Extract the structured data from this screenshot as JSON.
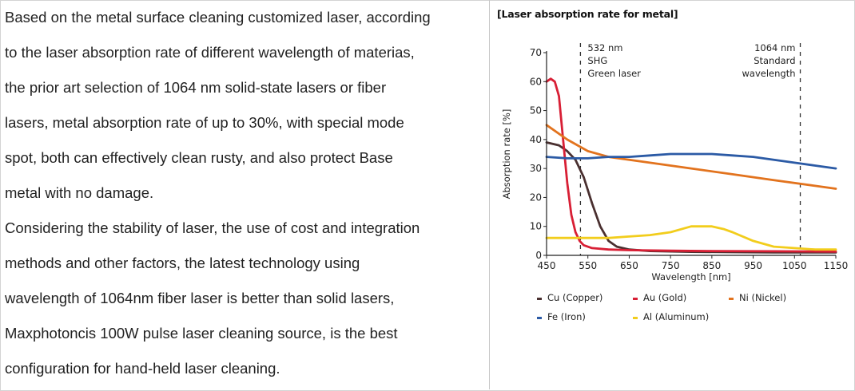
{
  "article": {
    "lines": [
      "Based on the metal surface cleaning customized laser, according",
      "to the laser absorption rate of different wavelength of materias,",
      "the prior art selection of 1064 nm solid-state lasers or fiber",
      "lasers, metal absorption rate of up to 30%, with special mode",
      "spot, both can effectively clean rusty, and also protect Base",
      "metal with no damage.",
      "Considering the stability of laser, the use of cost and integration",
      "methods and other factors, the latest technology using",
      "wavelength of 1064nm fiber laser is better than solid lasers,",
      "Maxphotoncis 100W pulse laser cleaning source, is the best",
      "configuration for hand-held laser cleaning."
    ]
  },
  "chart_data": {
    "type": "line",
    "title": "[Laser absorption rate for metal]",
    "xlabel": "Wavelength [nm]",
    "ylabel": "Absorption rate [%]",
    "xlim": [
      450,
      1150
    ],
    "ylim": [
      0,
      70
    ],
    "xticks": [
      450,
      550,
      650,
      750,
      850,
      950,
      1050,
      1150
    ],
    "yticks": [
      0,
      10,
      20,
      30,
      40,
      50,
      60,
      70
    ],
    "grid": false,
    "legend_position": "bottom",
    "annotations": [
      {
        "x": 532,
        "lines": [
          "532 nm",
          "SHG",
          "Green laser"
        ],
        "align": "left"
      },
      {
        "x": 1064,
        "lines": [
          "1064 nm",
          "Standard",
          "wavelength"
        ],
        "align": "right"
      }
    ],
    "series": [
      {
        "name": "Cu (Copper)",
        "color": "#4a3030",
        "x": [
          450,
          480,
          500,
          520,
          540,
          560,
          580,
          600,
          620,
          650,
          700,
          800,
          900,
          1000,
          1100,
          1150
        ],
        "y": [
          39,
          38,
          36,
          33,
          27,
          18,
          10,
          5,
          3,
          2,
          1.5,
          1.2,
          1.1,
          1,
          1,
          1
        ]
      },
      {
        "name": "Au (Gold)",
        "color": "#d81f35",
        "x": [
          450,
          460,
          470,
          480,
          490,
          500,
          510,
          520,
          530,
          540,
          560,
          600,
          650,
          750,
          850,
          1000,
          1150
        ],
        "y": [
          60,
          61,
          60,
          55,
          40,
          25,
          14,
          8,
          5,
          3.5,
          2.5,
          2,
          1.8,
          1.6,
          1.5,
          1.4,
          1.3
        ]
      },
      {
        "name": "Ni (Nickel)",
        "color": "#e2731e",
        "x": [
          450,
          500,
          550,
          600,
          650,
          700,
          800,
          900,
          1000,
          1100,
          1150
        ],
        "y": [
          45,
          40,
          36,
          34,
          33,
          32,
          30,
          28,
          26,
          24,
          23
        ]
      },
      {
        "name": "Fe (Iron)",
        "color": "#2b5aa5",
        "x": [
          450,
          500,
          550,
          600,
          650,
          700,
          750,
          800,
          850,
          900,
          950,
          1000,
          1050,
          1100,
          1150
        ],
        "y": [
          34,
          33.5,
          33.5,
          34,
          34,
          34.5,
          35,
          35,
          35,
          34.5,
          34,
          33,
          32,
          31,
          30
        ]
      },
      {
        "name": "Al (Aluminum)",
        "color": "#f2cd1c",
        "x": [
          450,
          500,
          550,
          600,
          650,
          700,
          750,
          800,
          850,
          880,
          900,
          950,
          1000,
          1050,
          1100,
          1150
        ],
        "y": [
          6,
          6,
          6,
          6,
          6.5,
          7,
          8,
          10,
          10,
          9,
          8,
          5,
          3,
          2.5,
          2,
          2
        ]
      }
    ]
  }
}
